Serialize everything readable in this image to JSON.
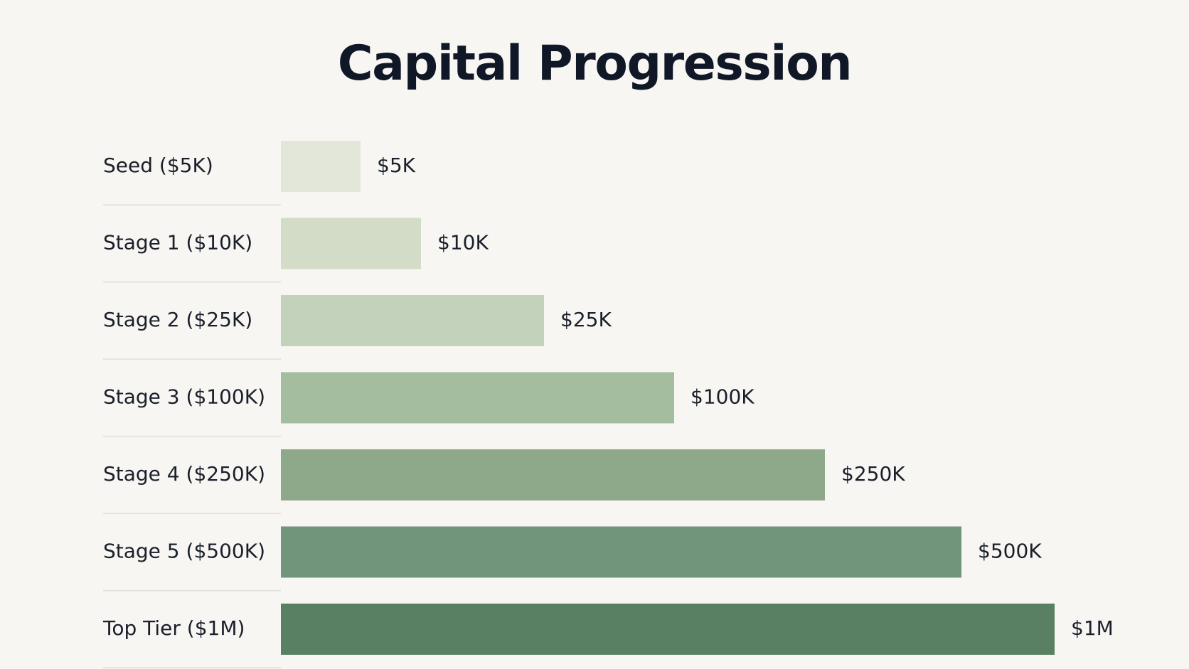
{
  "chart_data": {
    "type": "bar",
    "orientation": "horizontal",
    "title": "Capital Progression",
    "xlabel": "",
    "ylabel": "",
    "categories": [
      "Seed ($5K)",
      "Stage 1 ($10K)",
      "Stage 2 ($25K)",
      "Stage 3 ($100K)",
      "Stage 4 ($250K)",
      "Stage 5 ($500K)",
      "Top Tier ($1M)"
    ],
    "values": [
      5000,
      10000,
      25000,
      100000,
      250000,
      500000,
      1000000
    ],
    "value_labels": [
      "$5K",
      "$10K",
      "$25K",
      "$100K",
      "$250K",
      "$500K",
      "$1M"
    ],
    "colors": [
      "#e3e7da",
      "#d2dcc6",
      "#c3d3bb",
      "#a5bd9f",
      "#8ea98a",
      "#71957a",
      "#5a8064"
    ],
    "grid": false,
    "legend": "none"
  }
}
